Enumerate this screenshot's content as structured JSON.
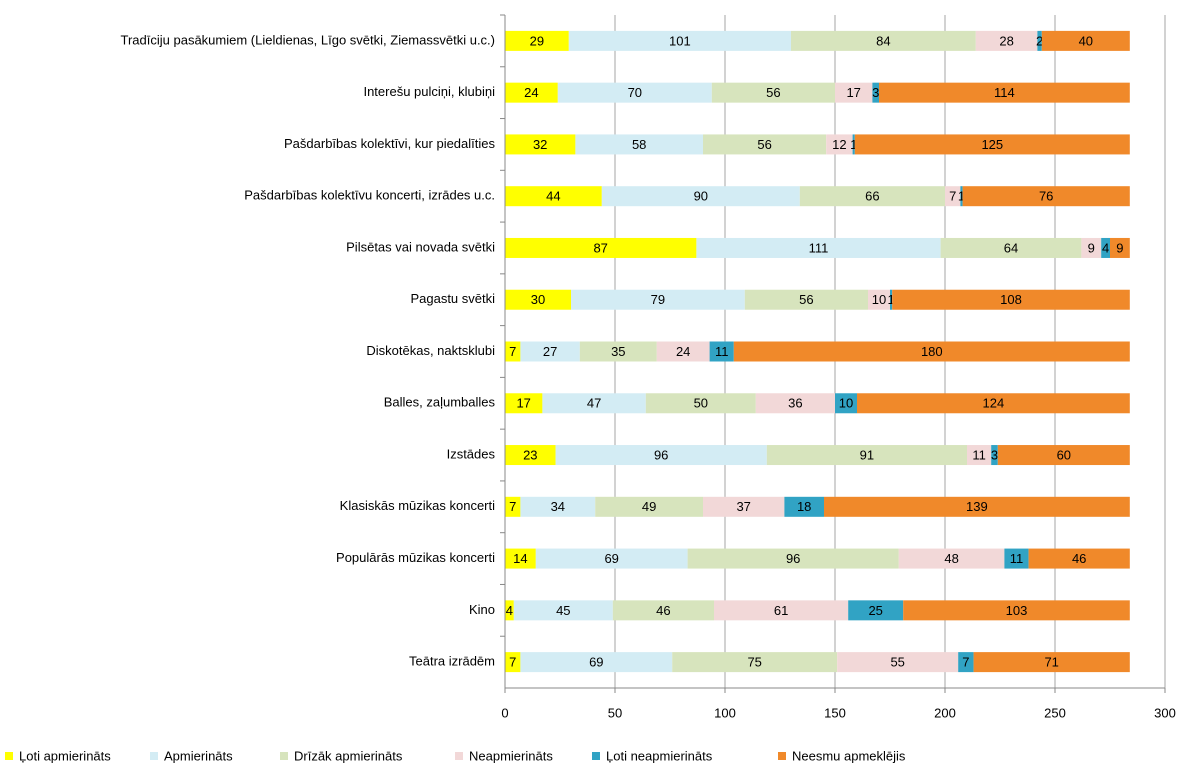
{
  "chart_data": {
    "type": "stacked_barh",
    "categories": [
      "Tradīciju pasākumiem (Lieldienas, Līgo svētki, Ziemassvētki u.c.)",
      "Interešu pulciņi, klubiņi",
      "Pašdarbības kolektīvi, kur piedalīties",
      "Pašdarbības kolektīvu koncerti, izrādes u.c.",
      "Pilsētas vai novada svētki",
      "Pagastu svētki",
      "Diskotēkas, naktsklubi",
      "Balles, zaļumballes",
      "Izstādes",
      "Klasiskās mūzikas koncerti",
      "Populārās mūzikas koncerti",
      "Kino",
      "Teātra izrādēm"
    ],
    "series": [
      {
        "name": "Ļoti apmierināts",
        "color": "#ffff00",
        "values": [
          29,
          24,
          32,
          44,
          87,
          30,
          7,
          17,
          23,
          7,
          14,
          4,
          7
        ]
      },
      {
        "name": "Apmierināts",
        "color": "#d3ecf4",
        "values": [
          101,
          70,
          58,
          90,
          111,
          79,
          27,
          47,
          96,
          34,
          69,
          45,
          69
        ]
      },
      {
        "name": "Drīzāk apmierināts",
        "color": "#d7e4bd",
        "values": [
          84,
          56,
          56,
          66,
          64,
          56,
          35,
          50,
          91,
          49,
          96,
          46,
          75
        ]
      },
      {
        "name": "Neapmierināts",
        "color": "#f2d8d8",
        "values": [
          28,
          17,
          12,
          7,
          9,
          10,
          24,
          36,
          11,
          37,
          48,
          61,
          55
        ]
      },
      {
        "name": "Ļoti neapmierināts",
        "color": "#31a3c4",
        "values": [
          2,
          3,
          1,
          1,
          4,
          1,
          11,
          10,
          3,
          18,
          11,
          25,
          7
        ]
      },
      {
        "name": "Neesmu apmeklējis",
        "color": "#f0892a",
        "values": [
          40,
          114,
          125,
          76,
          9,
          108,
          180,
          124,
          60,
          139,
          46,
          103,
          71
        ]
      }
    ],
    "xlim": [
      0,
      300
    ],
    "xticks": [
      0,
      50,
      100,
      150,
      200,
      250,
      300
    ],
    "grid": true,
    "legend": "bottom"
  }
}
